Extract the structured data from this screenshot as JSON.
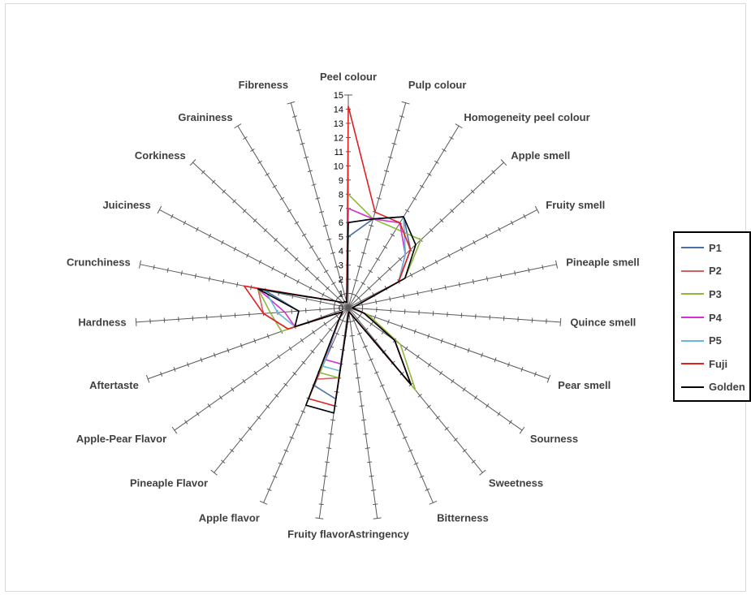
{
  "chart_data": {
    "type": "radar",
    "title": "",
    "axes": [
      "Peel colour",
      "Pulp colour",
      "Homogeneity peel colour",
      "Apple smell",
      "Fruity smell",
      "Pineaple smell",
      "Quince smell",
      "Pear smell",
      "Sourness",
      "Sweetness",
      "Bitterness",
      "Astringency",
      "Fruity flavor",
      "Apple flavor",
      "Pineaple Flavor",
      "Apple-Pear Flavor",
      "Aftertaste",
      "Hardness",
      "Crunchiness",
      "Juiciness",
      "Corkiness",
      "Graininess",
      "Fibreness"
    ],
    "scale": {
      "min": 0,
      "max": 15,
      "step": 1
    },
    "tick_labels": [
      "0",
      "1",
      "2",
      "3",
      "4",
      "5",
      "6",
      "7",
      "8",
      "9",
      "10",
      "11",
      "12",
      "13",
      "14",
      "15"
    ],
    "legend_position": "right",
    "series": [
      {
        "name": "P1",
        "color": "#4a6fa5",
        "values": [
          5,
          6.5,
          7.5,
          6,
          4,
          0.5,
          0.3,
          1.2,
          4,
          7,
          0.5,
          0.3,
          6.5,
          6,
          1,
          0.5,
          4,
          3.5,
          6,
          1,
          0.5,
          0.5,
          0.4
        ]
      },
      {
        "name": "P2",
        "color": "#d45f5f",
        "values": [
          7,
          6.5,
          7.5,
          5.5,
          4,
          0.5,
          0.3,
          1.2,
          4,
          7,
          0.5,
          0.3,
          5,
          5.5,
          1,
          0.5,
          4.5,
          6,
          6.5,
          1,
          0.5,
          0.5,
          0.4
        ]
      },
      {
        "name": "P3",
        "color": "#8db83b",
        "values": [
          8,
          6.5,
          6.5,
          7,
          4.5,
          0.5,
          0.3,
          1.5,
          4.5,
          7.5,
          0.5,
          0.3,
          5,
          5,
          1,
          0.5,
          5,
          5.5,
          6.5,
          1,
          0.5,
          0.5,
          0.4
        ]
      },
      {
        "name": "P4",
        "color": "#d430d4",
        "values": [
          7,
          6.5,
          7,
          5.5,
          4,
          0.5,
          0.3,
          1.2,
          4,
          7,
          0.5,
          0.3,
          4,
          4,
          1,
          0.5,
          4,
          4.5,
          6.5,
          1,
          0.5,
          0.5,
          0.4
        ]
      },
      {
        "name": "P5",
        "color": "#66b8d9",
        "values": [
          6,
          6.5,
          7.5,
          5.5,
          4,
          0.5,
          0.3,
          1.2,
          4,
          7,
          0.5,
          0.3,
          4.5,
          4.5,
          1,
          0.5,
          4,
          5,
          6,
          1,
          0.5,
          0.5,
          0.4
        ]
      },
      {
        "name": "Fuji",
        "color": "#e02020",
        "values": [
          14.2,
          7,
          7,
          6,
          4,
          0.5,
          0.3,
          1.2,
          4,
          7,
          0.5,
          0.3,
          7,
          7,
          1,
          0.5,
          4.5,
          6,
          7.5,
          1,
          0.5,
          0.5,
          0.4
        ]
      },
      {
        "name": "Golden",
        "color": "#000000",
        "values": [
          6,
          6.5,
          7.5,
          6.5,
          4.5,
          0.5,
          0.3,
          1.2,
          4,
          7,
          0.5,
          0.3,
          7.5,
          7.5,
          1,
          0.5,
          4,
          3.5,
          6.5,
          1,
          0.5,
          0.5,
          0.4
        ]
      }
    ]
  }
}
